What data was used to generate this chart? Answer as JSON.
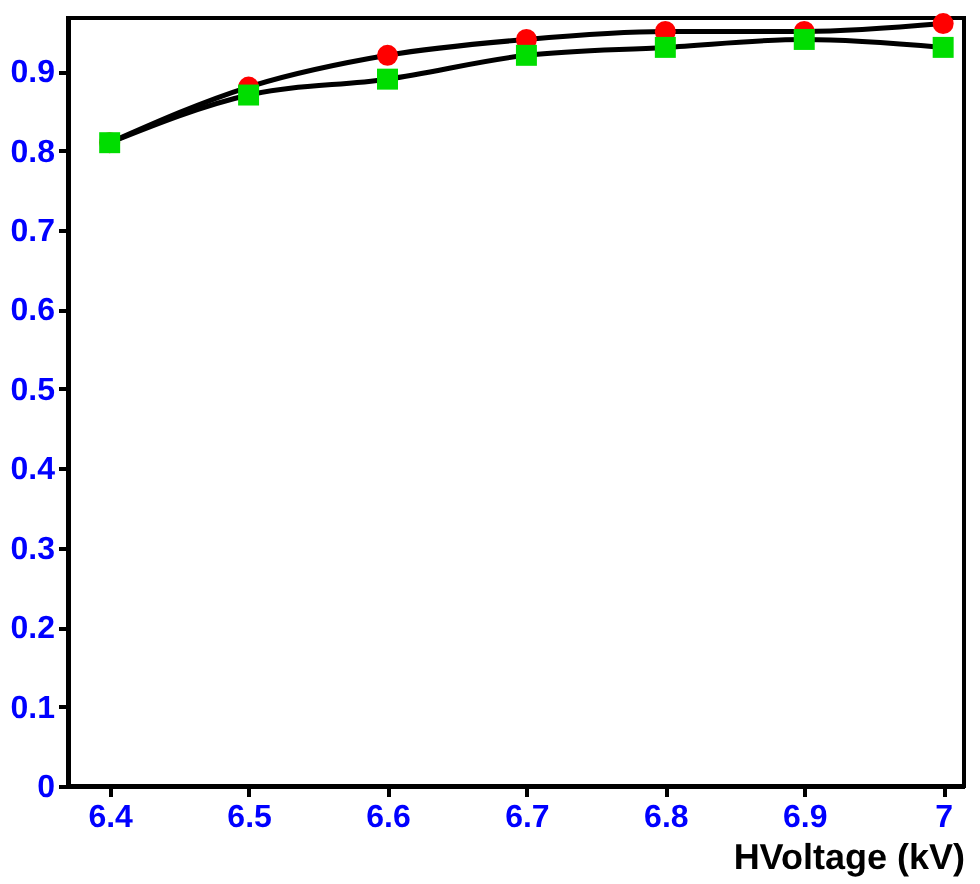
{
  "chart_data": {
    "type": "line",
    "xlabel": "HVoltage (kV)",
    "x": [
      6.4,
      6.5,
      6.6,
      6.7,
      6.8,
      6.9,
      7.0
    ],
    "series": [
      {
        "color": "#ff0000",
        "marker": "circle",
        "values": [
          0.81,
          0.88,
          0.92,
          0.94,
          0.95,
          0.95,
          0.96
        ]
      },
      {
        "color": "#00dd00",
        "marker": "square",
        "values": [
          0.81,
          0.87,
          0.89,
          0.92,
          0.93,
          0.94,
          0.93
        ]
      }
    ],
    "xlim": [
      6.37,
      7.015
    ],
    "xticks": [
      6.4,
      6.5,
      6.6,
      6.7,
      6.8,
      6.9,
      7
    ],
    "ylim": [
      0,
      0.967
    ],
    "yticks": [
      0,
      0.1,
      0.2,
      0.3,
      0.4,
      0.5,
      0.6,
      0.7,
      0.8,
      0.9
    ],
    "grid": false,
    "line_style": "solid"
  }
}
